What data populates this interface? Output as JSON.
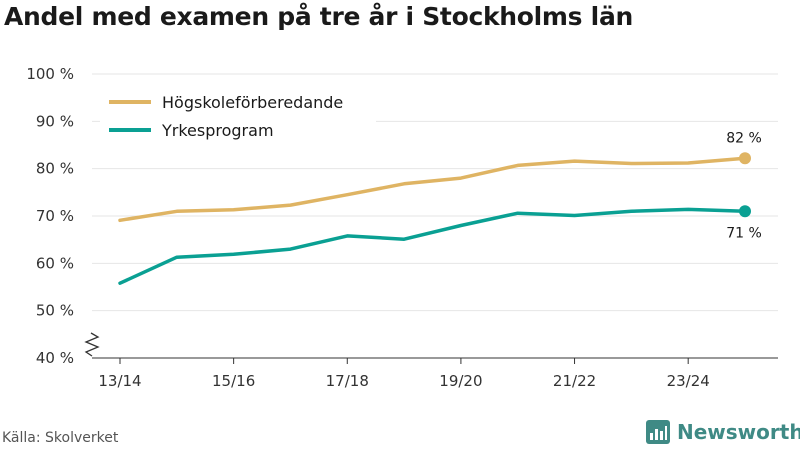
{
  "title": "Andel med examen på tre år i Stockholms län",
  "source": "Källa: Skolverket",
  "brand": {
    "name": "Newsworthy",
    "icon": "newsworthy-logo-icon"
  },
  "colors": {
    "series1": "#dfb463",
    "series2": "#0aa093",
    "grid": "#e6e6e6",
    "axis": "#333333"
  },
  "chart_data": {
    "type": "line",
    "title": "Andel med examen på tre år i Stockholms län",
    "xlabel": "",
    "ylabel": "",
    "x": [
      "13/14",
      "14/15",
      "15/16",
      "16/17",
      "17/18",
      "18/19",
      "19/20",
      "20/21",
      "21/22",
      "22/23",
      "23/24",
      "24/25"
    ],
    "x_tick_labels": [
      "13/14",
      "15/16",
      "17/18",
      "19/20",
      "21/22",
      "23/24"
    ],
    "y_tick_labels": [
      "40 %",
      "50 %",
      "60 %",
      "70 %",
      "80 %",
      "90 %",
      "100 %"
    ],
    "ylim": [
      40,
      100
    ],
    "y_axis_break": true,
    "grid": true,
    "legend_position": "top-left",
    "series": [
      {
        "name": "Högskoleförberedande",
        "values": [
          69.1,
          71.0,
          71.3,
          72.3,
          74.5,
          76.8,
          78.0,
          80.7,
          81.6,
          81.1,
          81.2,
          82.2
        ],
        "end_label": "82 %",
        "end_label_position": "above"
      },
      {
        "name": "Yrkesprogram",
        "values": [
          55.8,
          61.3,
          61.9,
          63.0,
          65.8,
          65.1,
          68.0,
          70.6,
          70.1,
          71.0,
          71.4,
          71.0
        ],
        "end_label": "71 %",
        "end_label_position": "below"
      }
    ]
  }
}
